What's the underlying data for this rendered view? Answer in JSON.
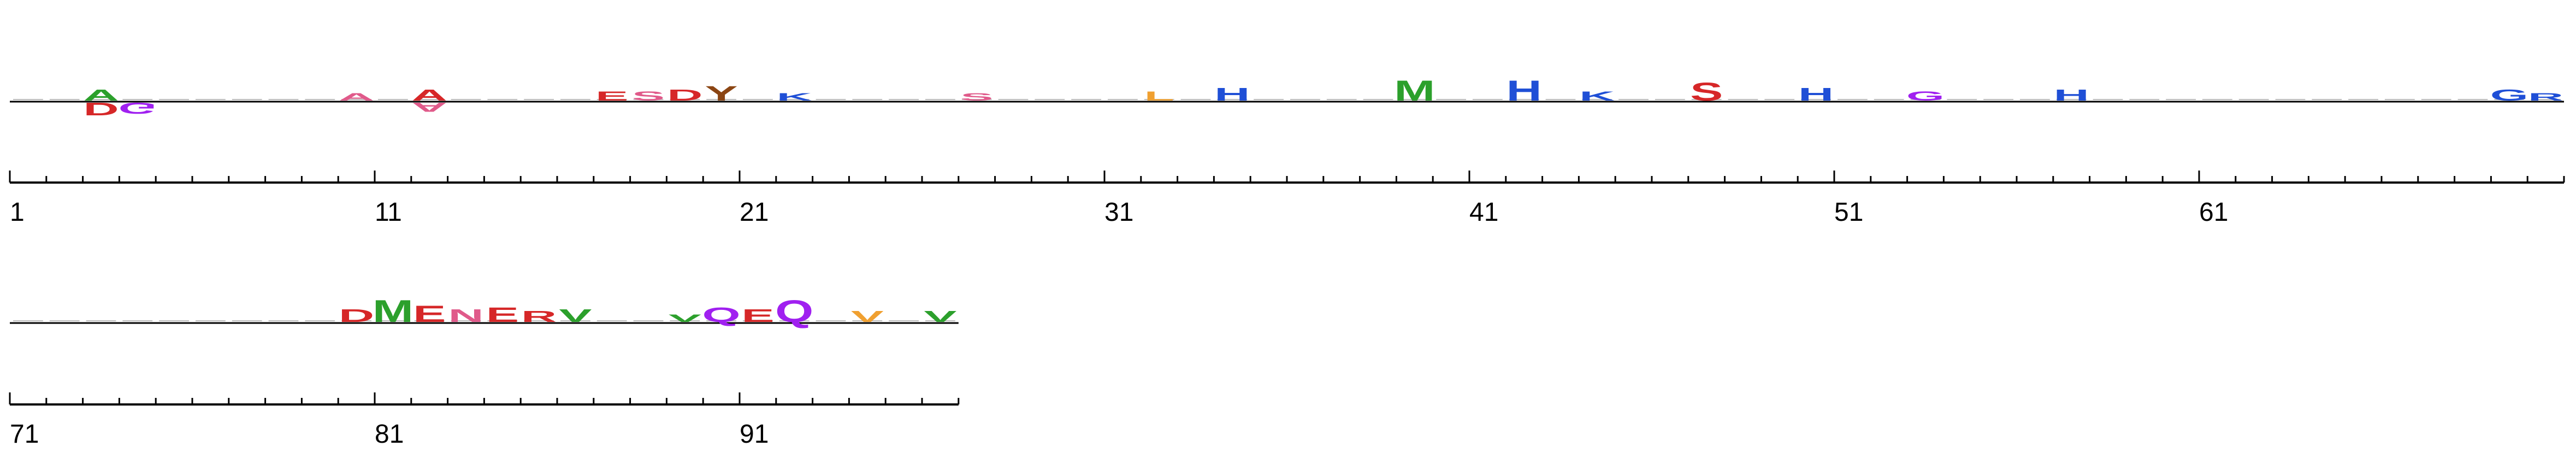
{
  "chart_data": {
    "type": "sequence-logo",
    "rows": [
      {
        "start": 1,
        "end": 70,
        "tick_labels": [
          "1",
          "11",
          "21",
          "31",
          "41",
          "51",
          "61"
        ]
      },
      {
        "start": 71,
        "end": 96,
        "tick_labels": [
          "71",
          "81",
          "91"
        ]
      }
    ],
    "colors": {
      "hydrophobic": "#f0a030",
      "acidic": "#d62728",
      "basic": "#1f4fd6",
      "polar": "#2ca02c",
      "amide": "#a020f0",
      "special": "#8b4513",
      "aromatic": "#e05a8a"
    },
    "glyphs": [
      {
        "pos": 3,
        "letter": "A",
        "h": 0.3,
        "color": "#2ca02c",
        "neg": false
      },
      {
        "pos": 3,
        "letter": "D",
        "h": 0.35,
        "color": "#d62728",
        "neg": true
      },
      {
        "pos": 4,
        "letter": "G",
        "h": 0.3,
        "color": "#a020f0",
        "neg": true
      },
      {
        "pos": 10,
        "letter": "A",
        "h": 0.2,
        "color": "#e05a8a",
        "neg": false
      },
      {
        "pos": 12,
        "letter": "A",
        "h": 0.3,
        "color": "#d62728",
        "neg": false
      },
      {
        "pos": 12,
        "letter": "A",
        "h": 0.25,
        "color": "#e05a8a",
        "neg": true
      },
      {
        "pos": 17,
        "letter": "E",
        "h": 0.25,
        "color": "#d62728",
        "neg": false
      },
      {
        "pos": 18,
        "letter": "S",
        "h": 0.25,
        "color": "#e05a8a",
        "neg": false
      },
      {
        "pos": 19,
        "letter": "D",
        "h": 0.3,
        "color": "#d62728",
        "neg": false
      },
      {
        "pos": 20,
        "letter": "Y",
        "h": 0.4,
        "color": "#8b4513",
        "neg": false
      },
      {
        "pos": 22,
        "letter": "K",
        "h": 0.2,
        "color": "#1f4fd6",
        "neg": false
      },
      {
        "pos": 27,
        "letter": "S",
        "h": 0.2,
        "color": "#e05a8a",
        "neg": false
      },
      {
        "pos": 32,
        "letter": "L",
        "h": 0.25,
        "color": "#f0a030",
        "neg": false
      },
      {
        "pos": 34,
        "letter": "H",
        "h": 0.35,
        "color": "#1f4fd6",
        "neg": false
      },
      {
        "pos": 39,
        "letter": "M",
        "h": 0.55,
        "color": "#2ca02c",
        "neg": false
      },
      {
        "pos": 42,
        "letter": "H",
        "h": 0.55,
        "color": "#1f4fd6",
        "neg": false
      },
      {
        "pos": 44,
        "letter": "K",
        "h": 0.25,
        "color": "#1f4fd6",
        "neg": false
      },
      {
        "pos": 47,
        "letter": "S",
        "h": 0.5,
        "color": "#d62728",
        "neg": false
      },
      {
        "pos": 50,
        "letter": "H",
        "h": 0.35,
        "color": "#1f4fd6",
        "neg": false
      },
      {
        "pos": 53,
        "letter": "G",
        "h": 0.25,
        "color": "#a020f0",
        "neg": false
      },
      {
        "pos": 57,
        "letter": "H",
        "h": 0.3,
        "color": "#1f4fd6",
        "neg": false
      },
      {
        "pos": 69,
        "letter": "G",
        "h": 0.3,
        "color": "#1f4fd6",
        "neg": false
      },
      {
        "pos": 70,
        "letter": "R",
        "h": 0.2,
        "color": "#1f4fd6",
        "neg": false
      },
      {
        "pos": 80,
        "letter": "D",
        "h": 0.35,
        "color": "#d62728",
        "neg": false
      },
      {
        "pos": 81,
        "letter": "M",
        "h": 0.6,
        "color": "#2ca02c",
        "neg": false
      },
      {
        "pos": 82,
        "letter": "E",
        "h": 0.45,
        "color": "#d62728",
        "neg": false
      },
      {
        "pos": 83,
        "letter": "N",
        "h": 0.35,
        "color": "#e05a8a",
        "neg": false
      },
      {
        "pos": 84,
        "letter": "E",
        "h": 0.4,
        "color": "#d62728",
        "neg": false
      },
      {
        "pos": 85,
        "letter": "R",
        "h": 0.3,
        "color": "#d62728",
        "neg": false
      },
      {
        "pos": 86,
        "letter": "V",
        "h": 0.35,
        "color": "#2ca02c",
        "neg": false
      },
      {
        "pos": 89,
        "letter": "V",
        "h": 0.2,
        "color": "#2ca02c",
        "neg": false
      },
      {
        "pos": 90,
        "letter": "Q",
        "h": 0.4,
        "color": "#a020f0",
        "neg": false
      },
      {
        "pos": 91,
        "letter": "E",
        "h": 0.35,
        "color": "#d62728",
        "neg": false
      },
      {
        "pos": 92,
        "letter": "Q",
        "h": 0.6,
        "color": "#a020f0",
        "neg": false
      },
      {
        "pos": 94,
        "letter": "V",
        "h": 0.3,
        "color": "#f0a030",
        "neg": false
      },
      {
        "pos": 96,
        "letter": "V",
        "h": 0.3,
        "color": "#2ca02c",
        "neg": false
      }
    ]
  }
}
